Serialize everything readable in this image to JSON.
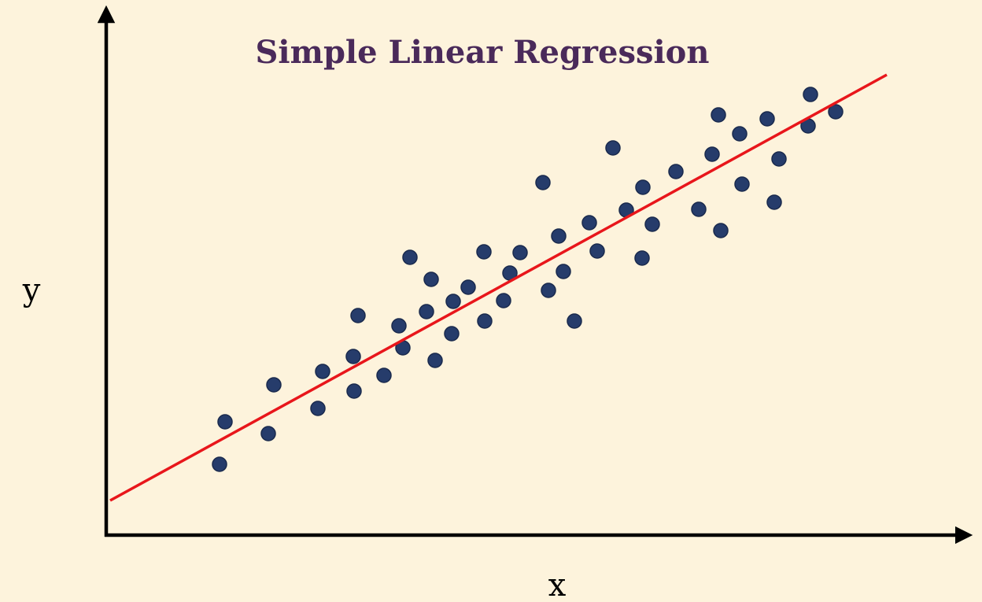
{
  "chart_data": {
    "type": "scatter",
    "title": "Simple Linear Regression",
    "x_label": "x",
    "y_label": "y",
    "xlim": [
      0,
      110
    ],
    "ylim": [
      0,
      67
    ],
    "points": {
      "color": "#263c6b",
      "x": [
        14.4,
        15.1,
        20.6,
        21.3,
        26.9,
        27.5,
        31.4,
        31.5,
        32.0,
        35.3,
        37.2,
        37.7,
        38.6,
        40.7,
        41.3,
        41.8,
        43.9,
        44.1,
        46.0,
        48.0,
        48.1,
        50.5,
        51.3,
        52.6,
        55.5,
        56.2,
        57.5,
        58.1,
        59.5,
        61.4,
        62.4,
        64.4,
        66.1,
        68.2,
        68.1,
        69.4,
        72.4,
        75.3,
        77.0,
        77.8,
        78.1,
        80.5,
        80.8,
        84.0,
        84.9,
        85.5,
        89.2,
        89.5,
        92.7
      ],
      "y": [
        9.0,
        14.4,
        12.9,
        19.1,
        16.1,
        20.8,
        22.7,
        18.3,
        27.9,
        20.3,
        26.6,
        23.8,
        35.3,
        28.4,
        32.5,
        22.2,
        25.6,
        29.7,
        31.5,
        36.0,
        27.2,
        29.8,
        33.3,
        35.9,
        44.8,
        31.1,
        38.0,
        33.5,
        27.2,
        39.7,
        36.1,
        49.2,
        41.3,
        44.2,
        35.2,
        39.5,
        46.2,
        41.4,
        48.4,
        53.4,
        38.7,
        51.0,
        44.6,
        52.9,
        42.3,
        47.8,
        52.0,
        56.0,
        53.8
      ]
    },
    "regression_line": {
      "color": "#e8161b",
      "x": [
        0.5,
        99.2
      ],
      "y": [
        4.4,
        58.5
      ]
    }
  }
}
